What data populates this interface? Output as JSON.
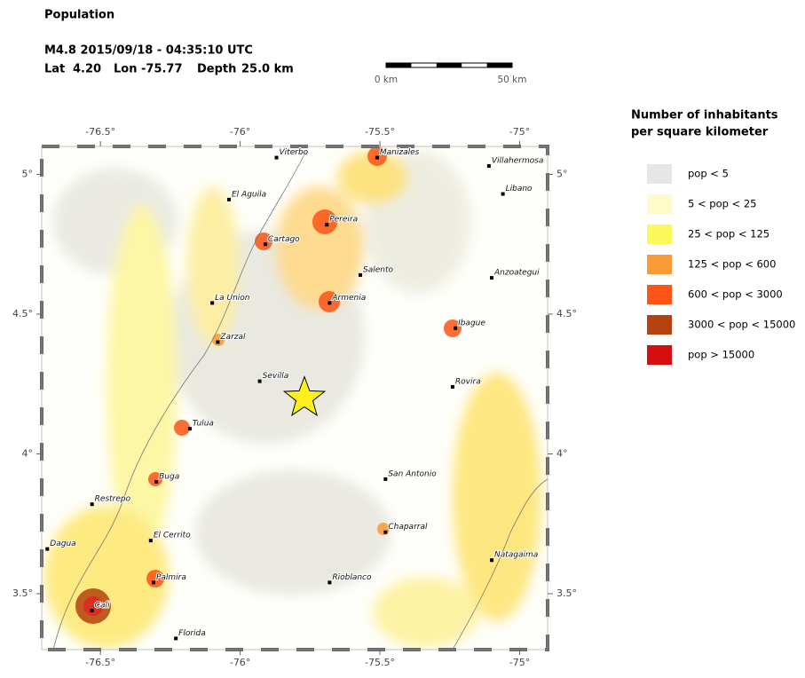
{
  "title": "Population",
  "event": {
    "headline": "M4.8  2015/09/18 - 04:35:10 UTC",
    "lat_label": "Lat",
    "lat": {
      "value": 4.2,
      "label": "4.20"
    },
    "lon_label": "Lon",
    "lon": {
      "value": -75.77,
      "label": "-75.77"
    },
    "depth_label": "Depth",
    "depth": {
      "value": 25,
      "label": "25.0 km"
    }
  },
  "scale_bar": {
    "labels": [
      "0 km",
      "50 km"
    ]
  },
  "map": {
    "xlim": [
      -76.71,
      -74.9
    ],
    "ylim": [
      3.3,
      5.1
    ],
    "xticks": [
      {
        "value": -76.5,
        "label": "-76.5°"
      },
      {
        "value": -76,
        "label": "-76°"
      },
      {
        "value": -75.5,
        "label": "-75.5°"
      },
      {
        "value": -75,
        "label": "-75°"
      }
    ],
    "yticks": [
      {
        "value": 3.5,
        "label": "3.5°"
      },
      {
        "value": 4,
        "label": "4°"
      },
      {
        "value": 4.5,
        "label": "4.5°"
      },
      {
        "value": 5,
        "label": "5°"
      }
    ],
    "cities": [
      {
        "name": "Viterbo",
        "lon": -75.87,
        "lat": 5.06
      },
      {
        "name": "Manizales",
        "lon": -75.51,
        "lat": 5.06
      },
      {
        "name": "Villahermosa",
        "lon": -75.11,
        "lat": 5.03
      },
      {
        "name": "El Aguila",
        "lon": -76.04,
        "lat": 4.91
      },
      {
        "name": "Libano",
        "lon": -75.06,
        "lat": 4.93
      },
      {
        "name": "Pereira",
        "lon": -75.69,
        "lat": 4.82
      },
      {
        "name": "Cartago",
        "lon": -75.91,
        "lat": 4.75
      },
      {
        "name": "Salento",
        "lon": -75.57,
        "lat": 4.64
      },
      {
        "name": "Anzoategui",
        "lon": -75.1,
        "lat": 4.63
      },
      {
        "name": "La Union",
        "lon": -76.1,
        "lat": 4.54
      },
      {
        "name": "Armenia",
        "lon": -75.68,
        "lat": 4.54
      },
      {
        "name": "Ibague",
        "lon": -75.23,
        "lat": 4.45
      },
      {
        "name": "Zarzal",
        "lon": -76.08,
        "lat": 4.4
      },
      {
        "name": "Sevilla",
        "lon": -75.93,
        "lat": 4.26
      },
      {
        "name": "Rovira",
        "lon": -75.24,
        "lat": 4.24
      },
      {
        "name": "Tulua",
        "lon": -76.18,
        "lat": 4.09
      },
      {
        "name": "San Antonio",
        "lon": -75.48,
        "lat": 3.91
      },
      {
        "name": "Buga",
        "lon": -76.3,
        "lat": 3.9
      },
      {
        "name": "Restrepo",
        "lon": -76.53,
        "lat": 3.82
      },
      {
        "name": "Chaparral",
        "lon": -75.48,
        "lat": 3.72
      },
      {
        "name": "El Cerrito",
        "lon": -76.32,
        "lat": 3.69
      },
      {
        "name": "Dagua",
        "lon": -76.69,
        "lat": 3.66
      },
      {
        "name": "Natagaima",
        "lon": -75.1,
        "lat": 3.62
      },
      {
        "name": "Palmira",
        "lon": -76.31,
        "lat": 3.54
      },
      {
        "name": "Rioblanco",
        "lon": -75.68,
        "lat": 3.54
      },
      {
        "name": "Cali",
        "lon": -76.53,
        "lat": 3.44
      },
      {
        "name": "Florida",
        "lon": -76.23,
        "lat": 3.34
      }
    ]
  },
  "legend": {
    "title": [
      "Number of inhabitants",
      "per square kilometer"
    ],
    "entries": [
      {
        "label": "pop < 5",
        "color": "#e6e6e6"
      },
      {
        "label": "5 < pop < 25",
        "color": "#fdfbc8"
      },
      {
        "label": "25 < pop < 125",
        "color": "#fcf75b"
      },
      {
        "label": "125 < pop < 600",
        "color": "#fb9a35"
      },
      {
        "label": "600 < pop < 3000",
        "color": "#fd5417"
      },
      {
        "label": "3000 < pop < 15000",
        "color": "#b5430f"
      },
      {
        "label": "pop > 15000",
        "color": "#d40e0e"
      }
    ]
  }
}
